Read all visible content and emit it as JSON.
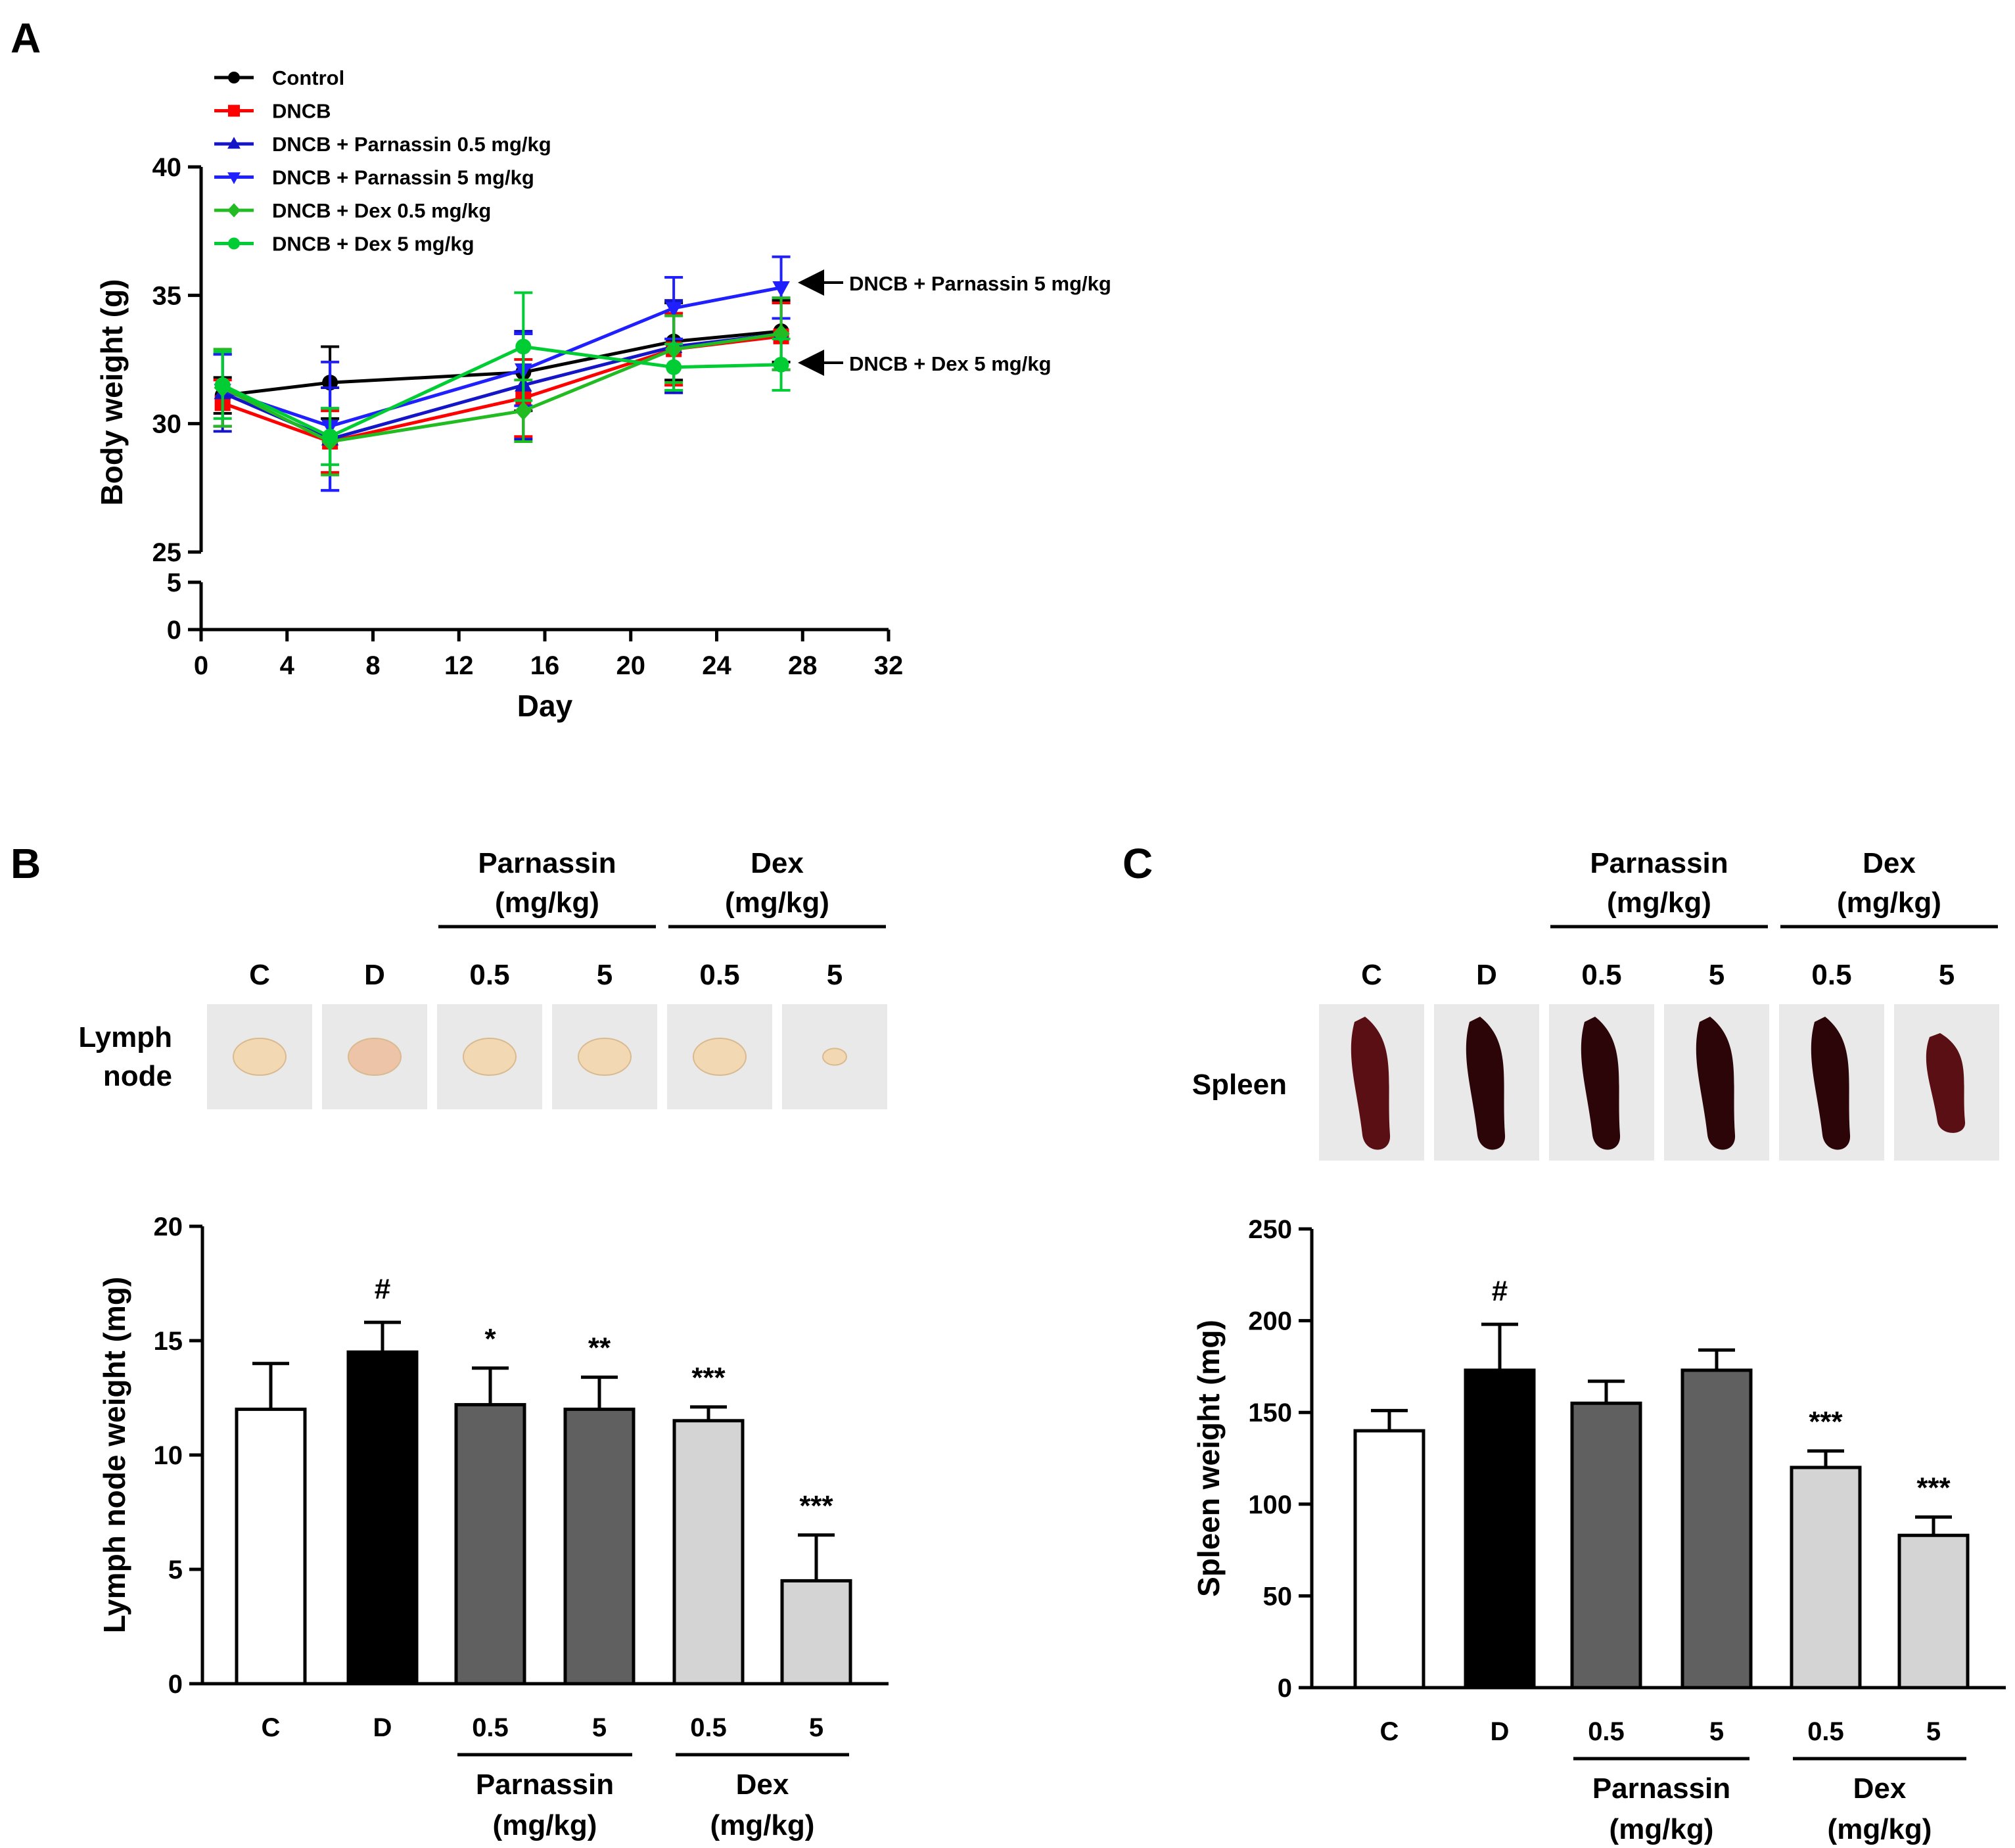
{
  "figure": {
    "panel_labels": [
      "A",
      "B",
      "C"
    ],
    "panel_a": {
      "callouts": [
        "DNCB + Parnassin 5 mg/kg",
        "DNCB + Dex 5 mg/kg"
      ]
    },
    "panel_b": {
      "photo_label": [
        "Lymph",
        "node"
      ],
      "photo_columns": [
        "C",
        "D",
        "0.5",
        "5",
        "0.5",
        "5"
      ],
      "group_headers": [
        {
          "line1": "Parnassin",
          "line2": "(mg/kg)"
        },
        {
          "line1": "Dex",
          "line2": "(mg/kg)"
        }
      ]
    },
    "panel_c": {
      "photo_label": "Spleen",
      "photo_columns": [
        "C",
        "D",
        "0.5",
        "5",
        "0.5",
        "5"
      ],
      "group_headers": [
        {
          "line1": "Parnassin",
          "line2": "(mg/kg)"
        },
        {
          "line1": "Dex",
          "line2": "(mg/kg)"
        }
      ]
    }
  },
  "colors": {
    "control": "#000000",
    "dncb": "#ff0000",
    "parn05": "#1515c8",
    "parn5": "#2020ff",
    "dex05": "#22bb22",
    "dex5": "#00cc33",
    "bar_white": "#ffffff",
    "bar_black": "#000000",
    "bar_dark": "#606060",
    "bar_light": "#d4d4d4"
  },
  "chart_data": [
    {
      "id": "A",
      "type": "line",
      "title": "",
      "xlabel": "Day",
      "ylabel": "Body weight (g)",
      "xlim": [
        0,
        32
      ],
      "xticks": [
        "0",
        "4",
        "8",
        "12",
        "16",
        "20",
        "24",
        "28",
        "32"
      ],
      "ylim_lower_segment": [
        0,
        5
      ],
      "ylim_upper_segment": [
        25,
        40
      ],
      "yticks": [
        "0",
        "5",
        "25",
        "30",
        "35",
        "40"
      ],
      "x": [
        1,
        6,
        15,
        22,
        27
      ],
      "legend_position": "top-left",
      "series": [
        {
          "name": "Control",
          "marker": "circle",
          "color_key": "control",
          "values": [
            31.1,
            31.6,
            32.0,
            33.2,
            33.6
          ],
          "errors": [
            0.7,
            1.4,
            1.5,
            1.5,
            1.2
          ]
        },
        {
          "name": "DNCB",
          "marker": "square",
          "color_key": "dncb",
          "values": [
            30.8,
            29.3,
            31.0,
            32.9,
            33.4
          ],
          "errors": [
            0.9,
            1.2,
            1.5,
            1.4,
            1.3
          ]
        },
        {
          "name": "DNCB + Parnassin 0.5 mg/kg",
          "marker": "triangle-up",
          "color_key": "parn05",
          "values": [
            31.2,
            29.4,
            31.5,
            33.0,
            33.5
          ],
          "errors": [
            1.5,
            2.0,
            2.1,
            1.8,
            1.4
          ]
        },
        {
          "name": "DNCB + Parnassin 5 mg/kg",
          "marker": "triangle-down",
          "color_key": "parn5",
          "values": [
            31.3,
            29.9,
            32.1,
            34.5,
            35.3
          ],
          "errors": [
            1.4,
            2.5,
            1.4,
            1.2,
            1.2
          ]
        },
        {
          "name": "DNCB + Dex 0.5 mg/kg",
          "marker": "diamond",
          "color_key": "dex05",
          "values": [
            31.4,
            29.3,
            30.5,
            32.9,
            33.5
          ],
          "errors": [
            1.5,
            1.3,
            1.2,
            1.3,
            1.4
          ]
        },
        {
          "name": "DNCB + Dex 5 mg/kg",
          "marker": "circle",
          "color_key": "dex5",
          "values": [
            31.5,
            29.5,
            33.0,
            32.2,
            32.3
          ],
          "errors": [
            1.3,
            1.1,
            2.1,
            0.9,
            1.0
          ]
        }
      ]
    },
    {
      "id": "B",
      "type": "bar",
      "title": "",
      "xlabel": "",
      "ylabel": "Lymph node weight (mg)",
      "ylim": [
        0,
        20
      ],
      "yticks": [
        "0",
        "5",
        "10",
        "15",
        "20"
      ],
      "categories": [
        "C",
        "D",
        "0.5",
        "5",
        "0.5",
        "5"
      ],
      "values": [
        12.0,
        14.5,
        12.2,
        12.0,
        11.5,
        4.5
      ],
      "errors": [
        2.0,
        1.3,
        1.6,
        1.4,
        0.6,
        2.0
      ],
      "fill_keys": [
        "bar_white",
        "bar_black",
        "bar_dark",
        "bar_dark",
        "bar_light",
        "bar_light"
      ],
      "annotations": [
        "",
        "#",
        "*",
        "**",
        "***",
        "***"
      ],
      "group_labels": [
        {
          "start": 2,
          "end": 3,
          "line1": "Parnassin",
          "line2": "(mg/kg)"
        },
        {
          "start": 4,
          "end": 5,
          "line1": "Dex",
          "line2": "(mg/kg)"
        }
      ]
    },
    {
      "id": "C",
      "type": "bar",
      "title": "",
      "xlabel": "",
      "ylabel": "Spleen weight (mg)",
      "ylim": [
        0,
        250
      ],
      "yticks": [
        "0",
        "50",
        "100",
        "150",
        "200",
        "250"
      ],
      "categories": [
        "C",
        "D",
        "0.5",
        "5",
        "0.5",
        "5"
      ],
      "values": [
        140,
        173,
        155,
        173,
        120,
        83
      ],
      "errors": [
        11,
        25,
        12,
        11,
        9,
        10
      ],
      "fill_keys": [
        "bar_white",
        "bar_black",
        "bar_dark",
        "bar_dark",
        "bar_light",
        "bar_light"
      ],
      "annotations": [
        "",
        "#",
        "",
        "",
        "***",
        "***"
      ],
      "group_labels": [
        {
          "start": 2,
          "end": 3,
          "line1": "Parnassin",
          "line2": "(mg/kg)"
        },
        {
          "start": 4,
          "end": 5,
          "line1": "Dex",
          "line2": "(mg/kg)"
        }
      ]
    }
  ]
}
